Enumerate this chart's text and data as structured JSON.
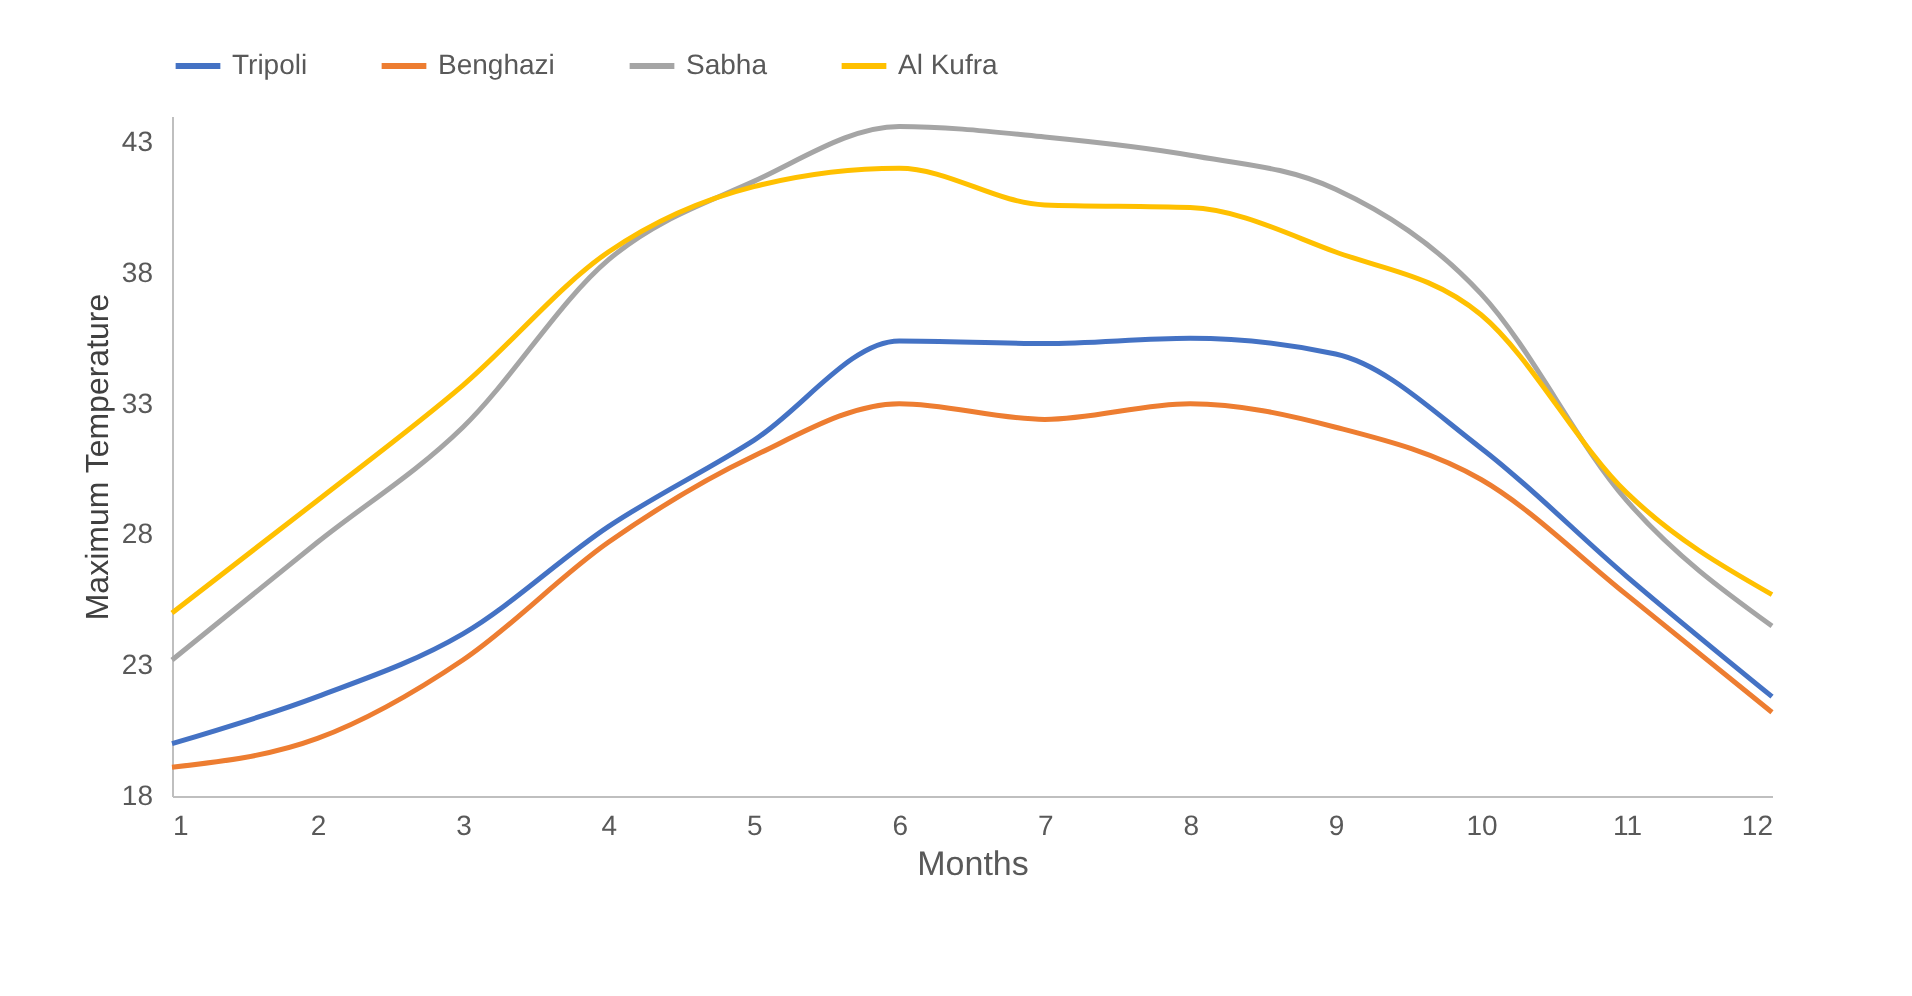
{
  "chart_data": {
    "type": "line",
    "xlabel": "Months",
    "ylabel": "Maximum Temperature",
    "x": [
      1,
      2,
      3,
      4,
      5,
      6,
      7,
      8,
      9,
      10,
      11,
      12
    ],
    "xlim": [
      1,
      12
    ],
    "xticks": [
      1,
      2,
      3,
      4,
      5,
      6,
      7,
      8,
      9,
      10,
      11,
      12
    ],
    "ylim": [
      18,
      44
    ],
    "yticks": [
      18,
      23,
      28,
      33,
      38,
      43
    ],
    "grid": false,
    "legend": "top",
    "marker": "none",
    "line_style": "solid",
    "series": [
      {
        "name": "Tripoli",
        "color": "#4472c4",
        "values": [
          20.0,
          21.8,
          24.2,
          28.3,
          31.6,
          35.4,
          35.3,
          35.5,
          34.9,
          31.3,
          26.4,
          21.8
        ]
      },
      {
        "name": "Benghazi",
        "color": "#ed7d31",
        "values": [
          19.1,
          20.2,
          23.2,
          27.7,
          31.0,
          33.0,
          32.4,
          33.0,
          32.1,
          30.1,
          25.7,
          21.2
        ]
      },
      {
        "name": "Sabha",
        "color": "#a5a5a5",
        "values": [
          23.2,
          27.7,
          32.1,
          38.5,
          41.5,
          43.6,
          43.2,
          42.5,
          41.2,
          37.2,
          29.3,
          24.5
        ]
      },
      {
        "name": "Al Kufra",
        "color": "#ffc000",
        "values": [
          25.0,
          29.3,
          33.7,
          38.8,
          41.3,
          42.0,
          40.6,
          40.5,
          38.8,
          36.4,
          29.6,
          25.7
        ]
      }
    ]
  }
}
